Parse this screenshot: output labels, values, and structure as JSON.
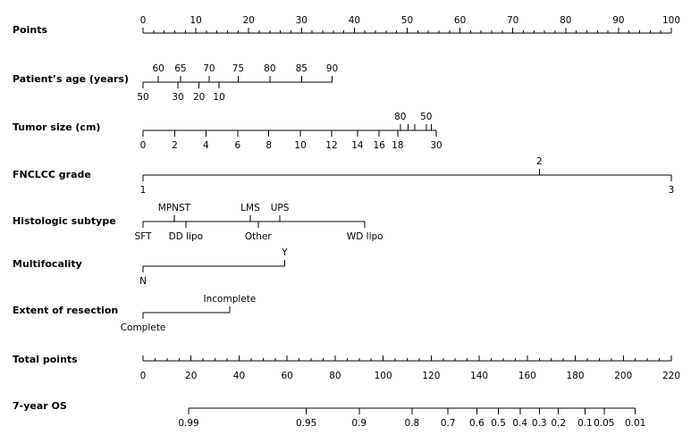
{
  "chart_data": {
    "type": "nomogram",
    "title": "",
    "rows": [
      {
        "label": "Points",
        "kind": "points",
        "min": 0,
        "max": 100,
        "major_labels": [
          "0",
          "10",
          "20",
          "30",
          "40",
          "50",
          "60",
          "70",
          "80",
          "90",
          "100"
        ],
        "minor_step": 2
      },
      {
        "label": "Patient’s age (years)",
        "kind": "variable",
        "ticks": [
          {
            "label": "50",
            "points": 0,
            "side": "below"
          },
          {
            "label": "30",
            "points": 6.6,
            "side": "below"
          },
          {
            "label": "20",
            "points": 10.6,
            "side": "below"
          },
          {
            "label": "10",
            "points": 14.4,
            "side": "below"
          },
          {
            "label": "60",
            "points": 2.9,
            "side": "above"
          },
          {
            "label": "65",
            "points": 7.1,
            "side": "above"
          },
          {
            "label": "70",
            "points": 12.5,
            "side": "above"
          },
          {
            "label": "75",
            "points": 18.0,
            "side": "above"
          },
          {
            "label": "80",
            "points": 24.0,
            "side": "above"
          },
          {
            "label": "85",
            "points": 30.0,
            "side": "above"
          },
          {
            "label": "90",
            "points": 35.8,
            "side": "above"
          }
        ]
      },
      {
        "label": "Tumor size (cm)",
        "kind": "variable",
        "ticks": [
          {
            "label": "0",
            "points": 0,
            "side": "below"
          },
          {
            "label": "2",
            "points": 6.0,
            "side": "below"
          },
          {
            "label": "4",
            "points": 11.9,
            "side": "below"
          },
          {
            "label": "6",
            "points": 17.9,
            "side": "below"
          },
          {
            "label": "8",
            "points": 23.8,
            "side": "below"
          },
          {
            "label": "10",
            "points": 29.8,
            "side": "below"
          },
          {
            "label": "12",
            "points": 35.7,
            "side": "below"
          },
          {
            "label": "14",
            "points": 40.6,
            "side": "below"
          },
          {
            "label": "16",
            "points": 44.7,
            "side": "below"
          },
          {
            "label": "18",
            "points": 48.2,
            "side": "below"
          },
          {
            "label": "30",
            "points": 55.5,
            "side": "below"
          },
          {
            "label": "80",
            "points": 48.7,
            "side": "above"
          },
          {
            "label": "",
            "points": 50.2,
            "side": "above"
          },
          {
            "label": "",
            "points": 51.4,
            "side": "above"
          },
          {
            "label": "50",
            "points": 53.6,
            "side": "above"
          },
          {
            "label": "",
            "points": 54.6,
            "side": "above"
          }
        ]
      },
      {
        "label": "FNCLCC grade",
        "kind": "variable",
        "ticks": [
          {
            "label": "1",
            "points": 0,
            "side": "below"
          },
          {
            "label": "2",
            "points": 75.0,
            "side": "above"
          },
          {
            "label": "3",
            "points": 100,
            "side": "below"
          }
        ]
      },
      {
        "label": "Histologic subtype",
        "kind": "variable",
        "ticks": [
          {
            "label": "SFT",
            "points": 0,
            "side": "below"
          },
          {
            "label": "MPNST",
            "points": 5.9,
            "side": "above"
          },
          {
            "label": "DD lipo",
            "points": 8.1,
            "side": "below"
          },
          {
            "label": "LMS",
            "points": 20.3,
            "side": "above"
          },
          {
            "label": "Other",
            "points": 21.8,
            "side": "below"
          },
          {
            "label": "UPS",
            "points": 25.9,
            "side": "above"
          },
          {
            "label": "WD lipo",
            "points": 42.0,
            "side": "below"
          }
        ]
      },
      {
        "label": "Multifocality",
        "kind": "variable",
        "ticks": [
          {
            "label": "N",
            "points": 0,
            "side": "below"
          },
          {
            "label": "Y",
            "points": 26.8,
            "side": "above"
          }
        ]
      },
      {
        "label": "Extent of resection",
        "kind": "variable",
        "ticks": [
          {
            "label": "Complete",
            "points": 0,
            "side": "below"
          },
          {
            "label": "Incomplete",
            "points": 16.4,
            "side": "above"
          }
        ]
      },
      {
        "label": "Total points",
        "kind": "total",
        "min": 0,
        "max": 220,
        "major_labels": [
          "0",
          "20",
          "40",
          "60",
          "80",
          "100",
          "120",
          "140",
          "160",
          "180",
          "200",
          "220"
        ],
        "minor_step": 5
      },
      {
        "label": "7-year OS",
        "kind": "outcome",
        "ticks": [
          {
            "label": "0.99",
            "total": 19
          },
          {
            "label": "0.95",
            "total": 68
          },
          {
            "label": "0.9",
            "total": 90
          },
          {
            "label": "0.8",
            "total": 112
          },
          {
            "label": "0.7",
            "total": 127
          },
          {
            "label": "0.6",
            "total": 139
          },
          {
            "label": "0.5",
            "total": 148
          },
          {
            "label": "0.4",
            "total": 157
          },
          {
            "label": "0.3",
            "total": 165
          },
          {
            "label": "0.2",
            "total": 173
          },
          {
            "label": "0.1",
            "total": 184
          },
          {
            "label": "0.05",
            "total": 192
          },
          {
            "label": "0.01",
            "total": 205
          }
        ],
        "range_total": [
          19,
          205
        ]
      }
    ]
  }
}
